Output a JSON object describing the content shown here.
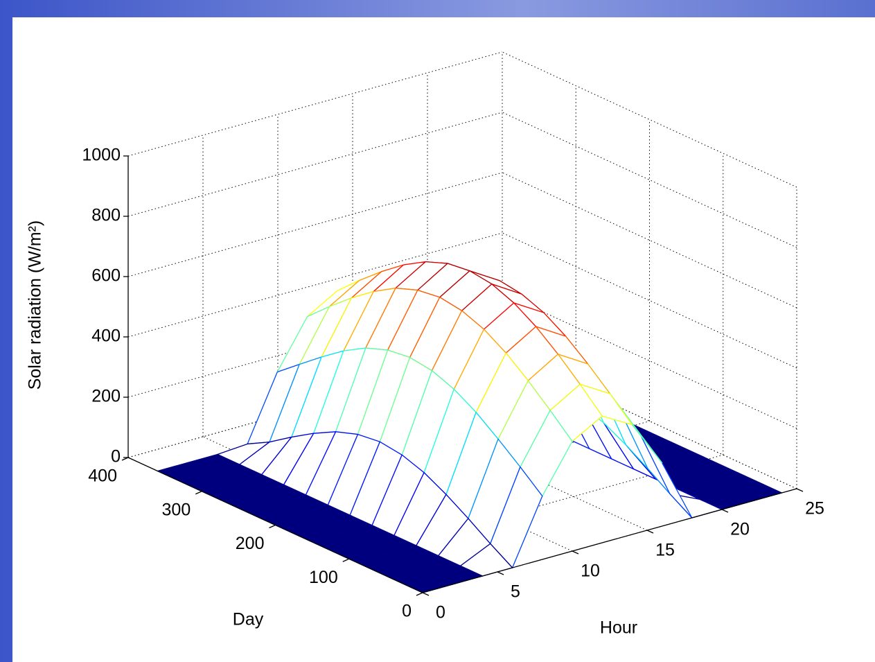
{
  "chart_data": {
    "type": "mesh",
    "xlabel": "Hour",
    "ylabel": "Day",
    "zlabel": "Solar radiation (W/m²)",
    "x": [
      0,
      2,
      4,
      6,
      8,
      10,
      12,
      14,
      16,
      18,
      20,
      22,
      24
    ],
    "y": [
      0,
      30,
      60,
      90,
      120,
      150,
      180,
      210,
      240,
      270,
      300,
      330,
      360
    ],
    "z": [
      [
        0,
        0,
        0,
        0,
        210,
        364,
        420,
        364,
        210,
        0,
        0,
        0,
        0
      ],
      [
        0,
        0,
        0,
        46,
        273,
        433,
        492,
        433,
        273,
        46,
        0,
        0,
        0
      ],
      [
        0,
        0,
        0,
        96,
        332,
        498,
        558,
        498,
        332,
        96,
        0,
        0,
        0
      ],
      [
        0,
        0,
        0,
        142,
        387,
        556,
        616,
        556,
        387,
        142,
        0,
        0,
        0
      ],
      [
        0,
        0,
        0,
        181,
        430,
        601,
        661,
        601,
        430,
        181,
        0,
        0,
        0
      ],
      [
        0,
        0,
        0,
        206,
        458,
        629,
        690,
        629,
        458,
        206,
        0,
        0,
        0
      ],
      [
        0,
        0,
        0,
        216,
        468,
        640,
        700,
        640,
        468,
        216,
        0,
        0,
        0
      ],
      [
        0,
        0,
        0,
        207,
        459,
        630,
        691,
        630,
        459,
        207,
        0,
        0,
        0
      ],
      [
        0,
        0,
        0,
        182,
        432,
        603,
        663,
        603,
        432,
        182,
        0,
        0,
        0
      ],
      [
        0,
        0,
        0,
        143,
        389,
        558,
        619,
        558,
        389,
        143,
        0,
        0,
        0
      ],
      [
        0,
        0,
        0,
        97,
        335,
        503,
        563,
        503,
        335,
        97,
        0,
        0,
        0
      ],
      [
        0,
        0,
        0,
        47,
        277,
        441,
        500,
        441,
        277,
        47,
        0,
        0,
        0
      ],
      [
        0,
        0,
        0,
        7,
        218,
        374,
        432,
        374,
        218,
        7,
        0,
        0,
        0
      ]
    ],
    "colormap": "jet",
    "xlim": [
      0,
      25
    ],
    "xticks": [
      0,
      5,
      10,
      15,
      20,
      25
    ],
    "ylim": [
      0,
      400
    ],
    "yticks": [
      0,
      100,
      200,
      300,
      400
    ],
    "zlim": [
      0,
      1000
    ],
    "zticks": [
      0,
      200,
      400,
      600,
      800,
      1000
    ],
    "grid": true
  }
}
